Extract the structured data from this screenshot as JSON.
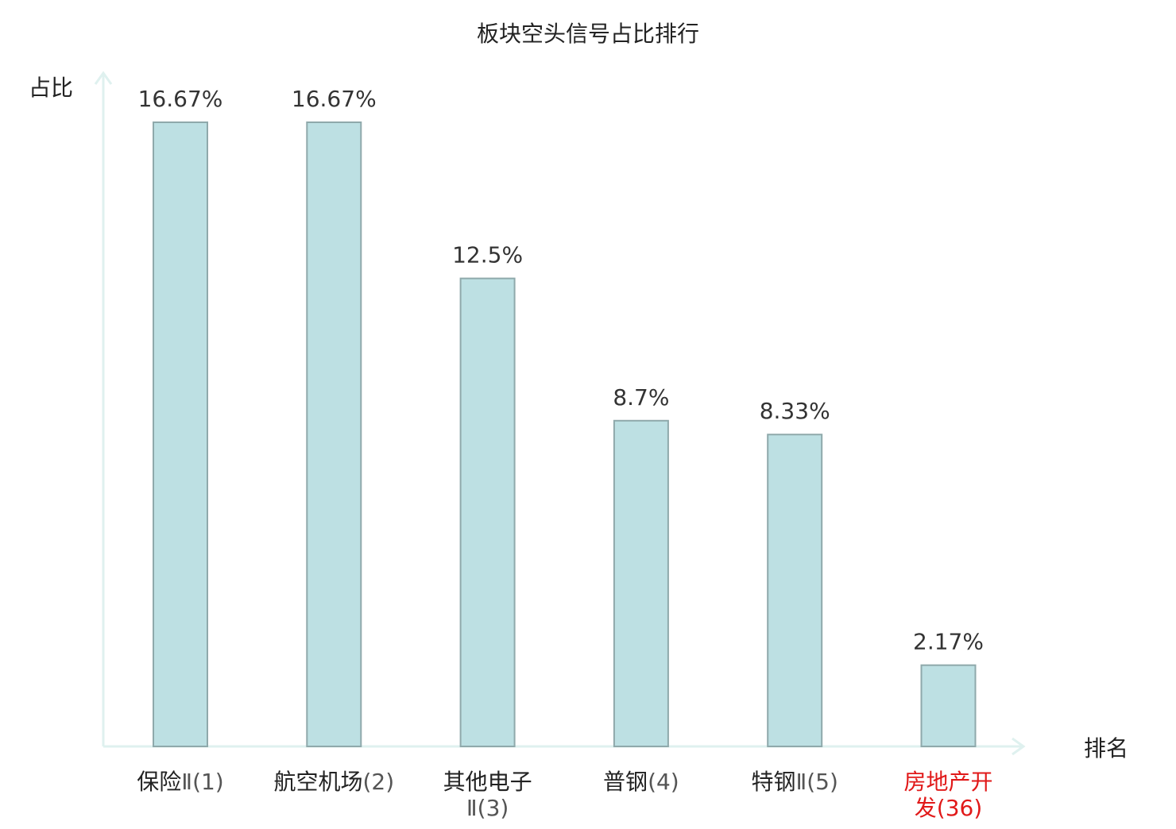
{
  "chart_data": {
    "type": "bar",
    "title": "板块空头信号占比排行",
    "ylabel": "占比",
    "xlabel": "排名",
    "ylim": [
      0,
      18
    ],
    "grid": false,
    "categories": [
      {
        "lines": [
          {
            "main": "保险",
            "suffix": "Ⅱ(1)"
          }
        ],
        "highlight": false
      },
      {
        "lines": [
          {
            "main": "航空机场",
            "suffix": "(2)"
          }
        ],
        "highlight": false
      },
      {
        "lines": [
          {
            "main": "其他电子",
            "suffix": ""
          },
          {
            "main": "",
            "suffix": "Ⅱ(3)"
          }
        ],
        "highlight": false
      },
      {
        "lines": [
          {
            "main": "普钢",
            "suffix": "(4)"
          }
        ],
        "highlight": false
      },
      {
        "lines": [
          {
            "main": "特钢",
            "suffix": "Ⅱ(5)"
          }
        ],
        "highlight": false
      },
      {
        "lines": [
          {
            "main": "房地产开",
            "suffix": ""
          },
          {
            "main": "发",
            "suffix": "(36)"
          }
        ],
        "highlight": true
      }
    ],
    "values": [
      16.67,
      16.67,
      12.5,
      8.7,
      8.33,
      2.17
    ],
    "value_labels": [
      "16.67%",
      "16.67%",
      "12.5%",
      "8.7%",
      "8.33%",
      "2.17%"
    ],
    "colors": {
      "bar_fill": "#bde0e3",
      "bar_stroke": "#8fa9ab",
      "axis": "#dff1ef",
      "text": "#222222",
      "value_text": "#333333",
      "suffix_text": "#555555",
      "highlight_text": "#e11919"
    }
  }
}
